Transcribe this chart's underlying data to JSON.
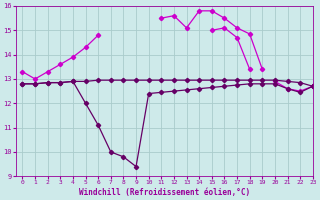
{
  "x": [
    0,
    1,
    2,
    3,
    4,
    5,
    6,
    7,
    8,
    9,
    10,
    11,
    12,
    13,
    14,
    15,
    16,
    17,
    18,
    19,
    20,
    21,
    22,
    23
  ],
  "line_upper": [
    13.3,
    13.0,
    13.3,
    13.6,
    13.9,
    14.3,
    14.8,
    null,
    null,
    null,
    null,
    15.5,
    15.6,
    15.1,
    15.8,
    15.8,
    15.5,
    15.1,
    14.85,
    13.4,
    null,
    null,
    null,
    null
  ],
  "line_mid_upper": [
    null,
    null,
    null,
    null,
    null,
    null,
    null,
    null,
    null,
    null,
    null,
    null,
    null,
    null,
    null,
    15.0,
    15.1,
    14.7,
    13.4,
    null,
    12.9,
    12.6,
    12.5,
    12.7
  ],
  "line_flat": [
    12.8,
    12.8,
    12.85,
    12.85,
    12.9,
    12.9,
    12.95,
    12.95,
    12.95,
    12.95,
    12.95,
    12.95,
    12.95,
    12.95,
    12.95,
    12.95,
    12.95,
    12.95,
    12.95,
    12.95,
    12.95,
    12.9,
    12.85,
    12.7
  ],
  "line_lower": [
    12.8,
    12.8,
    12.85,
    12.85,
    12.9,
    12.0,
    11.1,
    10.0,
    9.8,
    9.4,
    12.4,
    12.45,
    12.5,
    12.55,
    12.6,
    12.65,
    12.7,
    12.75,
    12.8,
    12.8,
    12.8,
    12.6,
    12.45,
    12.7
  ],
  "ylim": [
    9,
    16
  ],
  "xlim": [
    -0.5,
    23
  ],
  "yticks": [
    9,
    10,
    11,
    12,
    13,
    14,
    15,
    16
  ],
  "xticks": [
    0,
    1,
    2,
    3,
    4,
    5,
    6,
    7,
    8,
    9,
    10,
    11,
    12,
    13,
    14,
    15,
    16,
    17,
    18,
    19,
    20,
    21,
    22,
    23
  ],
  "xlabel": "Windchill (Refroidissement éolien,°C)",
  "bg_color": "#ceeaea",
  "line_color_bright": "#cc00cc",
  "line_color_dark": "#660066",
  "grid_color": "#aacccc",
  "tick_color": "#990099"
}
